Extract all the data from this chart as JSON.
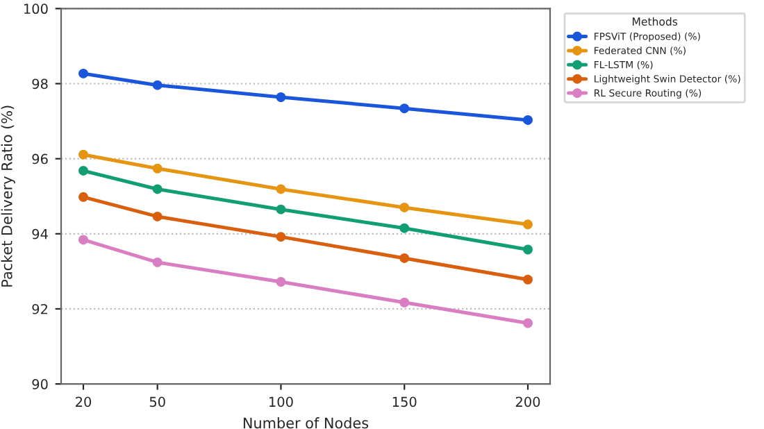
{
  "chart_data": {
    "type": "line",
    "xlabel": "Number of Nodes",
    "ylabel": "Packet Delivery Ratio (%)",
    "legend_title": "Methods",
    "x": [
      20,
      50,
      100,
      150,
      200
    ],
    "series": [
      {
        "name": "FPSViT (Proposed) (%)",
        "color": "#1a56db",
        "values": [
          98.27,
          97.96,
          97.64,
          97.34,
          97.03
        ]
      },
      {
        "name": "Federated CNN (%)",
        "color": "#e69512",
        "values": [
          96.11,
          95.74,
          95.19,
          94.7,
          94.25
        ]
      },
      {
        "name": "FL-LSTM (%)",
        "color": "#119e73",
        "values": [
          95.68,
          95.19,
          94.65,
          94.15,
          93.58
        ]
      },
      {
        "name": "Lightweight Swin Detector (%)",
        "color": "#d95f0e",
        "values": [
          94.98,
          94.46,
          93.92,
          93.35,
          92.78
        ]
      },
      {
        "name": "RL Secure Routing (%)",
        "color": "#d97ec2",
        "values": [
          93.84,
          93.24,
          92.72,
          92.17,
          91.62
        ]
      }
    ],
    "xlim": [
      11,
      209
    ],
    "xticks": [
      20,
      50,
      100,
      150,
      200
    ],
    "ylim": [
      90,
      100
    ],
    "yticks": [
      90,
      92,
      94,
      96,
      98,
      100
    ],
    "grid": "y",
    "legend": "top right",
    "marker": "circle",
    "line_style": "solid"
  }
}
